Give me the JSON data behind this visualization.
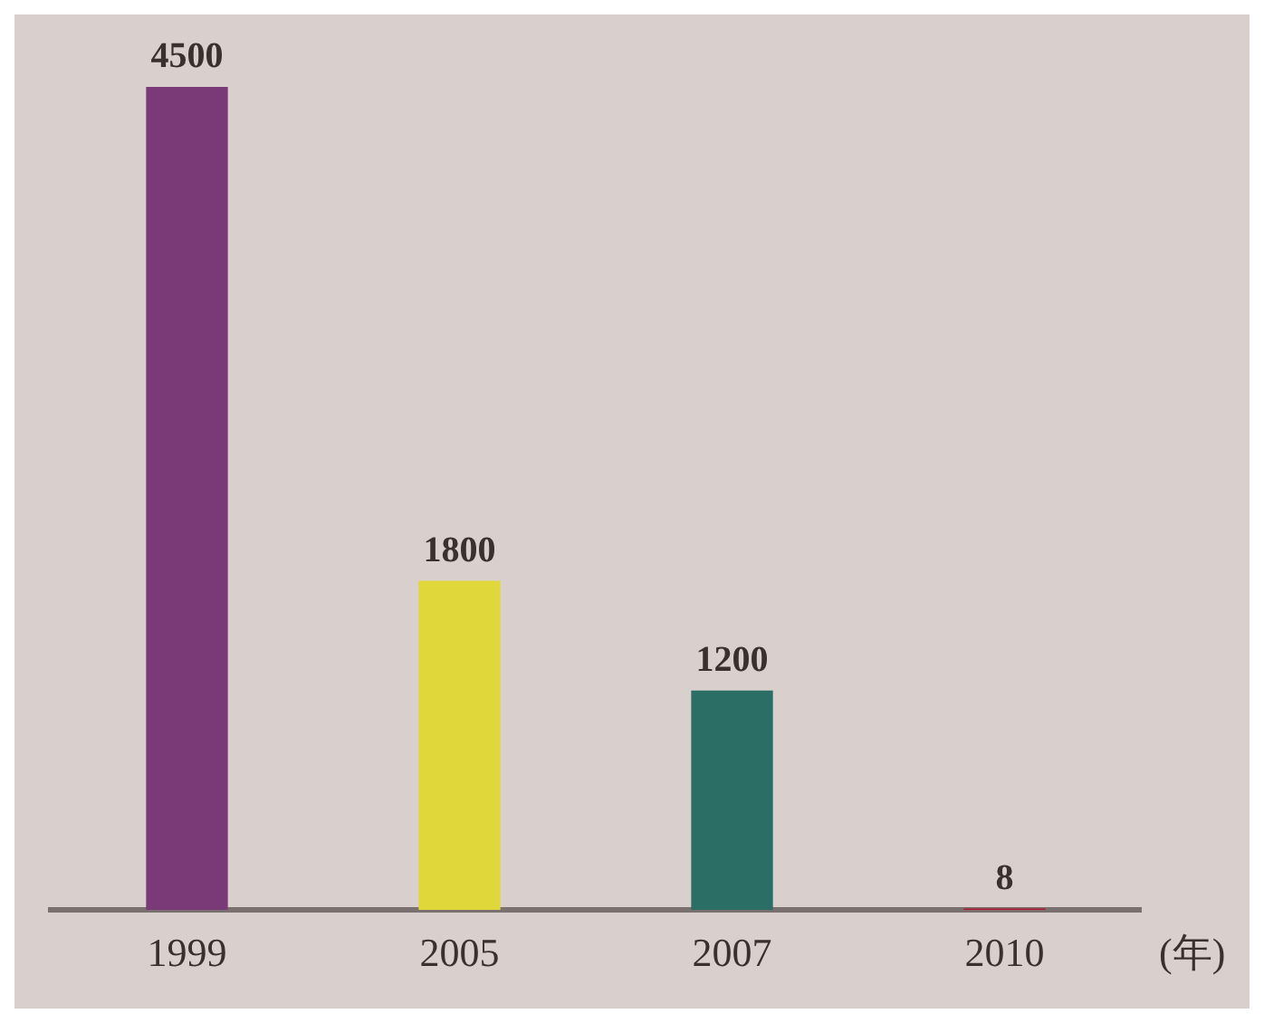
{
  "chart_data": {
    "type": "bar",
    "categories": [
      "1999",
      "2005",
      "2007",
      "2010"
    ],
    "values": [
      4500,
      1800,
      1200,
      8
    ],
    "colors": [
      "#7a3a78",
      "#e0d83a",
      "#2a6e66",
      "#b01a30"
    ],
    "data_labels": true,
    "xlabel": "(年)",
    "grid": false,
    "legend": false
  }
}
